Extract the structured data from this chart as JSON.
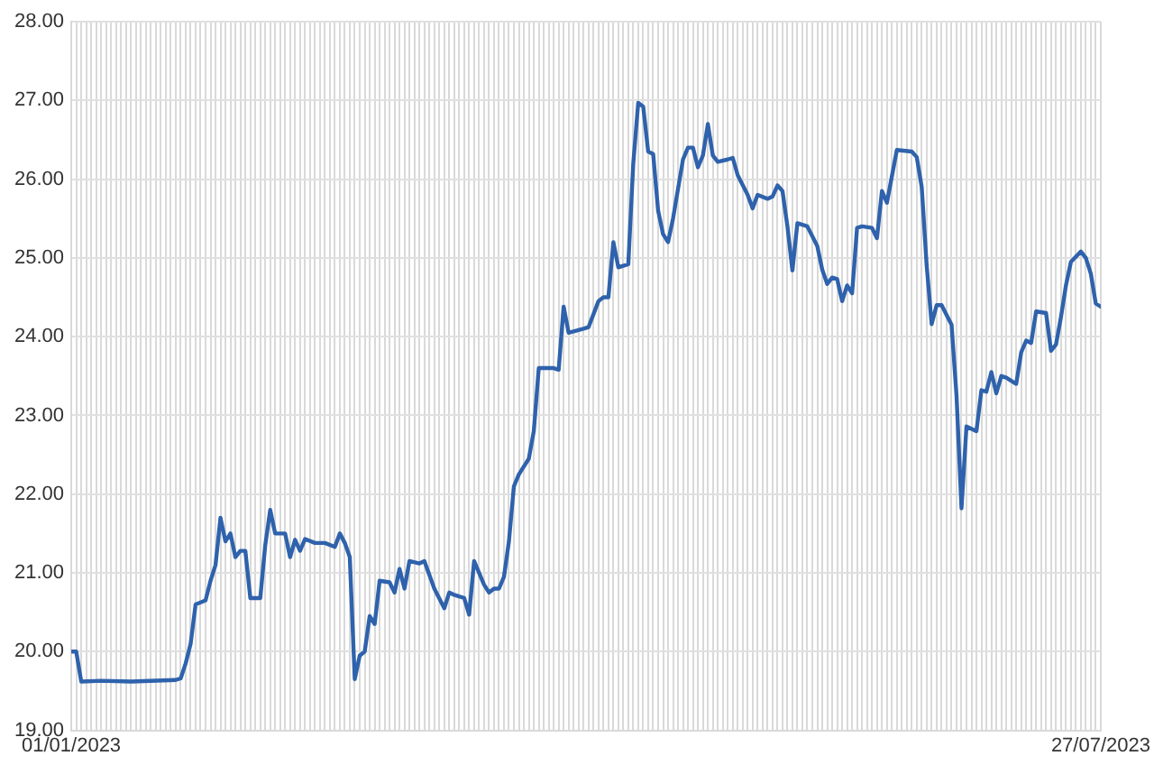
{
  "chart_data": {
    "type": "line",
    "xlim": [
      "2023-01-01",
      "2023-07-27"
    ],
    "ylim": [
      19,
      28
    ],
    "yticks": [
      {
        "value": 19,
        "label": "19.00"
      },
      {
        "value": 20,
        "label": "20.00"
      },
      {
        "value": 21,
        "label": "21.00"
      },
      {
        "value": 22,
        "label": "22.00"
      },
      {
        "value": 23,
        "label": "23.00"
      },
      {
        "value": 24,
        "label": "24.00"
      },
      {
        "value": 25,
        "label": "25.00"
      },
      {
        "value": 26,
        "label": "26.00"
      },
      {
        "value": 27,
        "label": "27.00"
      },
      {
        "value": 28,
        "label": "28.00"
      }
    ],
    "xticks": [
      {
        "value": "2023-01-01",
        "label": "01/01/2023"
      },
      {
        "value": "2023-01-02",
        "label": null
      },
      {
        "value": "2023-01-03",
        "label": null
      },
      {
        "value": "2023-01-04",
        "label": null
      },
      {
        "value": "2023-01-05",
        "label": null
      },
      {
        "value": "2023-01-06",
        "label": null
      },
      {
        "value": "2023-01-07",
        "label": null
      },
      {
        "value": "2023-01-08",
        "label": null
      },
      {
        "value": "2023-01-09",
        "label": null
      },
      {
        "value": "2023-01-10",
        "label": null
      },
      {
        "value": "2023-01-11",
        "label": null
      },
      {
        "value": "2023-01-12",
        "label": null
      },
      {
        "value": "2023-01-13",
        "label": null
      },
      {
        "value": "2023-01-14",
        "label": null
      },
      {
        "value": "2023-01-15",
        "label": null
      },
      {
        "value": "2023-01-16",
        "label": null
      },
      {
        "value": "2023-01-17",
        "label": null
      },
      {
        "value": "2023-01-18",
        "label": null
      },
      {
        "value": "2023-01-19",
        "label": null
      },
      {
        "value": "2023-01-20",
        "label": null
      },
      {
        "value": "2023-01-21",
        "label": null
      },
      {
        "value": "2023-01-22",
        "label": null
      },
      {
        "value": "2023-01-23",
        "label": null
      },
      {
        "value": "2023-01-24",
        "label": null
      },
      {
        "value": "2023-01-25",
        "label": null
      },
      {
        "value": "2023-01-26",
        "label": null
      },
      {
        "value": "2023-01-27",
        "label": null
      },
      {
        "value": "2023-01-28",
        "label": null
      },
      {
        "value": "2023-01-29",
        "label": null
      },
      {
        "value": "2023-01-30",
        "label": null
      },
      {
        "value": "2023-01-31",
        "label": null
      },
      {
        "value": "2023-02-01",
        "label": null
      },
      {
        "value": "2023-02-02",
        "label": null
      },
      {
        "value": "2023-02-03",
        "label": null
      },
      {
        "value": "2023-02-04",
        "label": null
      },
      {
        "value": "2023-02-05",
        "label": null
      },
      {
        "value": "2023-02-06",
        "label": null
      },
      {
        "value": "2023-02-07",
        "label": null
      },
      {
        "value": "2023-02-08",
        "label": null
      },
      {
        "value": "2023-02-09",
        "label": null
      },
      {
        "value": "2023-02-10",
        "label": null
      },
      {
        "value": "2023-02-11",
        "label": null
      },
      {
        "value": "2023-02-12",
        "label": null
      },
      {
        "value": "2023-02-13",
        "label": null
      },
      {
        "value": "2023-02-14",
        "label": null
      },
      {
        "value": "2023-02-15",
        "label": null
      },
      {
        "value": "2023-02-16",
        "label": null
      },
      {
        "value": "2023-02-17",
        "label": null
      },
      {
        "value": "2023-02-18",
        "label": null
      },
      {
        "value": "2023-02-19",
        "label": null
      },
      {
        "value": "2023-02-20",
        "label": null
      },
      {
        "value": "2023-02-21",
        "label": null
      },
      {
        "value": "2023-02-22",
        "label": null
      },
      {
        "value": "2023-02-23",
        "label": null
      },
      {
        "value": "2023-02-24",
        "label": null
      },
      {
        "value": "2023-02-25",
        "label": null
      },
      {
        "value": "2023-02-26",
        "label": null
      },
      {
        "value": "2023-02-27",
        "label": null
      },
      {
        "value": "2023-02-28",
        "label": null
      },
      {
        "value": "2023-03-01",
        "label": null
      },
      {
        "value": "2023-03-02",
        "label": null
      },
      {
        "value": "2023-03-03",
        "label": null
      },
      {
        "value": "2023-03-04",
        "label": null
      },
      {
        "value": "2023-03-05",
        "label": null
      },
      {
        "value": "2023-03-06",
        "label": null
      },
      {
        "value": "2023-03-07",
        "label": null
      },
      {
        "value": "2023-03-08",
        "label": null
      },
      {
        "value": "2023-03-09",
        "label": null
      },
      {
        "value": "2023-03-10",
        "label": null
      },
      {
        "value": "2023-03-11",
        "label": null
      },
      {
        "value": "2023-03-12",
        "label": null
      },
      {
        "value": "2023-03-13",
        "label": null
      },
      {
        "value": "2023-03-14",
        "label": null
      },
      {
        "value": "2023-03-15",
        "label": null
      },
      {
        "value": "2023-03-16",
        "label": null
      },
      {
        "value": "2023-03-17",
        "label": null
      },
      {
        "value": "2023-03-18",
        "label": null
      },
      {
        "value": "2023-03-19",
        "label": null
      },
      {
        "value": "2023-03-20",
        "label": null
      },
      {
        "value": "2023-03-21",
        "label": null
      },
      {
        "value": "2023-03-22",
        "label": null
      },
      {
        "value": "2023-03-23",
        "label": null
      },
      {
        "value": "2023-03-24",
        "label": null
      },
      {
        "value": "2023-03-25",
        "label": null
      },
      {
        "value": "2023-03-26",
        "label": null
      },
      {
        "value": "2023-03-27",
        "label": null
      },
      {
        "value": "2023-03-28",
        "label": null
      },
      {
        "value": "2023-03-29",
        "label": null
      },
      {
        "value": "2023-03-30",
        "label": null
      },
      {
        "value": "2023-03-31",
        "label": null
      },
      {
        "value": "2023-04-01",
        "label": null
      },
      {
        "value": "2023-04-02",
        "label": null
      },
      {
        "value": "2023-04-03",
        "label": null
      },
      {
        "value": "2023-04-04",
        "label": null
      },
      {
        "value": "2023-04-05",
        "label": null
      },
      {
        "value": "2023-04-06",
        "label": null
      },
      {
        "value": "2023-04-07",
        "label": null
      },
      {
        "value": "2023-04-08",
        "label": null
      },
      {
        "value": "2023-04-09",
        "label": null
      },
      {
        "value": "2023-04-10",
        "label": null
      },
      {
        "value": "2023-04-11",
        "label": null
      },
      {
        "value": "2023-04-12",
        "label": null
      },
      {
        "value": "2023-04-13",
        "label": null
      },
      {
        "value": "2023-04-14",
        "label": null
      },
      {
        "value": "2023-04-15",
        "label": null
      },
      {
        "value": "2023-04-16",
        "label": null
      },
      {
        "value": "2023-04-17",
        "label": null
      },
      {
        "value": "2023-04-18",
        "label": null
      },
      {
        "value": "2023-04-19",
        "label": null
      },
      {
        "value": "2023-04-20",
        "label": null
      },
      {
        "value": "2023-04-21",
        "label": null
      },
      {
        "value": "2023-04-22",
        "label": null
      },
      {
        "value": "2023-04-23",
        "label": null
      },
      {
        "value": "2023-04-24",
        "label": null
      },
      {
        "value": "2023-04-25",
        "label": null
      },
      {
        "value": "2023-04-26",
        "label": null
      },
      {
        "value": "2023-04-27",
        "label": null
      },
      {
        "value": "2023-04-28",
        "label": null
      },
      {
        "value": "2023-04-29",
        "label": null
      },
      {
        "value": "2023-04-30",
        "label": null
      },
      {
        "value": "2023-05-01",
        "label": null
      },
      {
        "value": "2023-05-02",
        "label": null
      },
      {
        "value": "2023-05-03",
        "label": null
      },
      {
        "value": "2023-05-04",
        "label": null
      },
      {
        "value": "2023-05-05",
        "label": null
      },
      {
        "value": "2023-05-06",
        "label": null
      },
      {
        "value": "2023-05-07",
        "label": null
      },
      {
        "value": "2023-05-08",
        "label": null
      },
      {
        "value": "2023-05-09",
        "label": null
      },
      {
        "value": "2023-05-10",
        "label": null
      },
      {
        "value": "2023-05-11",
        "label": null
      },
      {
        "value": "2023-05-12",
        "label": null
      },
      {
        "value": "2023-05-13",
        "label": null
      },
      {
        "value": "2023-05-14",
        "label": null
      },
      {
        "value": "2023-05-15",
        "label": null
      },
      {
        "value": "2023-05-16",
        "label": null
      },
      {
        "value": "2023-05-17",
        "label": null
      },
      {
        "value": "2023-05-18",
        "label": null
      },
      {
        "value": "2023-05-19",
        "label": null
      },
      {
        "value": "2023-05-20",
        "label": null
      },
      {
        "value": "2023-05-21",
        "label": null
      },
      {
        "value": "2023-05-22",
        "label": null
      },
      {
        "value": "2023-05-23",
        "label": null
      },
      {
        "value": "2023-05-24",
        "label": null
      },
      {
        "value": "2023-05-25",
        "label": null
      },
      {
        "value": "2023-05-26",
        "label": null
      },
      {
        "value": "2023-05-27",
        "label": null
      },
      {
        "value": "2023-05-28",
        "label": null
      },
      {
        "value": "2023-05-29",
        "label": null
      },
      {
        "value": "2023-05-30",
        "label": null
      },
      {
        "value": "2023-05-31",
        "label": null
      },
      {
        "value": "2023-06-01",
        "label": null
      },
      {
        "value": "2023-06-02",
        "label": null
      },
      {
        "value": "2023-06-03",
        "label": null
      },
      {
        "value": "2023-06-04",
        "label": null
      },
      {
        "value": "2023-06-05",
        "label": null
      },
      {
        "value": "2023-06-06",
        "label": null
      },
      {
        "value": "2023-06-07",
        "label": null
      },
      {
        "value": "2023-06-08",
        "label": null
      },
      {
        "value": "2023-06-09",
        "label": null
      },
      {
        "value": "2023-06-10",
        "label": null
      },
      {
        "value": "2023-06-11",
        "label": null
      },
      {
        "value": "2023-06-12",
        "label": null
      },
      {
        "value": "2023-06-13",
        "label": null
      },
      {
        "value": "2023-06-14",
        "label": null
      },
      {
        "value": "2023-06-15",
        "label": null
      },
      {
        "value": "2023-06-16",
        "label": null
      },
      {
        "value": "2023-06-17",
        "label": null
      },
      {
        "value": "2023-06-18",
        "label": null
      },
      {
        "value": "2023-06-19",
        "label": null
      },
      {
        "value": "2023-06-20",
        "label": null
      },
      {
        "value": "2023-06-21",
        "label": null
      },
      {
        "value": "2023-06-22",
        "label": null
      },
      {
        "value": "2023-06-23",
        "label": null
      },
      {
        "value": "2023-06-24",
        "label": null
      },
      {
        "value": "2023-06-25",
        "label": null
      },
      {
        "value": "2023-06-26",
        "label": null
      },
      {
        "value": "2023-06-27",
        "label": null
      },
      {
        "value": "2023-06-28",
        "label": null
      },
      {
        "value": "2023-06-29",
        "label": null
      },
      {
        "value": "2023-06-30",
        "label": null
      },
      {
        "value": "2023-07-01",
        "label": null
      },
      {
        "value": "2023-07-02",
        "label": null
      },
      {
        "value": "2023-07-03",
        "label": null
      },
      {
        "value": "2023-07-04",
        "label": null
      },
      {
        "value": "2023-07-05",
        "label": null
      },
      {
        "value": "2023-07-06",
        "label": null
      },
      {
        "value": "2023-07-07",
        "label": null
      },
      {
        "value": "2023-07-08",
        "label": null
      },
      {
        "value": "2023-07-09",
        "label": null
      },
      {
        "value": "2023-07-10",
        "label": null
      },
      {
        "value": "2023-07-11",
        "label": null
      },
      {
        "value": "2023-07-12",
        "label": null
      },
      {
        "value": "2023-07-13",
        "label": null
      },
      {
        "value": "2023-07-14",
        "label": null
      },
      {
        "value": "2023-07-15",
        "label": null
      },
      {
        "value": "2023-07-16",
        "label": null
      },
      {
        "value": "2023-07-17",
        "label": null
      },
      {
        "value": "2023-07-18",
        "label": null
      },
      {
        "value": "2023-07-19",
        "label": null
      },
      {
        "value": "2023-07-20",
        "label": null
      },
      {
        "value": "2023-07-21",
        "label": null
      },
      {
        "value": "2023-07-22",
        "label": null
      },
      {
        "value": "2023-07-23",
        "label": null
      },
      {
        "value": "2023-07-24",
        "label": null
      },
      {
        "value": "2023-07-25",
        "label": null
      },
      {
        "value": "2023-07-26",
        "label": null
      },
      {
        "value": "2023-07-27",
        "label": "27/07/2023"
      }
    ],
    "grid": true,
    "legend": false,
    "marker": "none",
    "line_style": "solid",
    "series": [
      {
        "color": "#2f62ac",
        "x": [
          "2023-01-01",
          "2023-01-02",
          "2023-01-03",
          "2023-01-07",
          "2023-01-13",
          "2023-01-22",
          "2023-01-23",
          "2023-01-24",
          "2023-01-25",
          "2023-01-26",
          "2023-01-28",
          "2023-01-29",
          "2023-01-30",
          "2023-01-31",
          "2023-02-01",
          "2023-02-02",
          "2023-02-03",
          "2023-02-04",
          "2023-02-05",
          "2023-02-06",
          "2023-02-08",
          "2023-02-09",
          "2023-02-10",
          "2023-02-11",
          "2023-02-13",
          "2023-02-14",
          "2023-02-15",
          "2023-02-16",
          "2023-02-17",
          "2023-02-19",
          "2023-02-21",
          "2023-02-23",
          "2023-02-24",
          "2023-02-25",
          "2023-02-26",
          "2023-02-27",
          "2023-02-28",
          "2023-03-01",
          "2023-03-02",
          "2023-03-03",
          "2023-03-04",
          "2023-03-06",
          "2023-03-07",
          "2023-03-08",
          "2023-03-09",
          "2023-03-10",
          "2023-03-12",
          "2023-03-13",
          "2023-03-15",
          "2023-03-17",
          "2023-03-18",
          "2023-03-19",
          "2023-03-21",
          "2023-03-22",
          "2023-03-23",
          "2023-03-25",
          "2023-03-26",
          "2023-03-27",
          "2023-03-28",
          "2023-03-29",
          "2023-03-30",
          "2023-03-31",
          "2023-04-01",
          "2023-04-02",
          "2023-04-03",
          "2023-04-04",
          "2023-04-05",
          "2023-04-08",
          "2023-04-09",
          "2023-04-10",
          "2023-04-11",
          "2023-04-14",
          "2023-04-15",
          "2023-04-17",
          "2023-04-18",
          "2023-04-19",
          "2023-04-20",
          "2023-04-21",
          "2023-04-23",
          "2023-04-24",
          "2023-04-25",
          "2023-04-26",
          "2023-04-27",
          "2023-04-28",
          "2023-04-29",
          "2023-04-30",
          "2023-05-01",
          "2023-05-02",
          "2023-05-04",
          "2023-05-05",
          "2023-05-06",
          "2023-05-07",
          "2023-05-08",
          "2023-05-09",
          "2023-05-10",
          "2023-05-11",
          "2023-05-13",
          "2023-05-14",
          "2023-05-15",
          "2023-05-17",
          "2023-05-18",
          "2023-05-19",
          "2023-05-21",
          "2023-05-22",
          "2023-05-23",
          "2023-05-24",
          "2023-05-25",
          "2023-05-26",
          "2023-05-27",
          "2023-05-29",
          "2023-05-31",
          "2023-06-01",
          "2023-06-02",
          "2023-06-03",
          "2023-06-04",
          "2023-06-05",
          "2023-06-06",
          "2023-06-07",
          "2023-06-08",
          "2023-06-09",
          "2023-06-11",
          "2023-06-12",
          "2023-06-13",
          "2023-06-14",
          "2023-06-16",
          "2023-06-19",
          "2023-06-20",
          "2023-06-21",
          "2023-06-22",
          "2023-06-23",
          "2023-06-24",
          "2023-06-25",
          "2023-06-27",
          "2023-06-28",
          "2023-06-29",
          "2023-06-30",
          "2023-07-02",
          "2023-07-03",
          "2023-07-04",
          "2023-07-05",
          "2023-07-06",
          "2023-07-07",
          "2023-07-08",
          "2023-07-10",
          "2023-07-11",
          "2023-07-12",
          "2023-07-13",
          "2023-07-14",
          "2023-07-16",
          "2023-07-17",
          "2023-07-18",
          "2023-07-19",
          "2023-07-20",
          "2023-07-21",
          "2023-07-23",
          "2023-07-24",
          "2023-07-25",
          "2023-07-26",
          "2023-07-27"
        ],
        "values": [
          20.0,
          20.0,
          19.62,
          19.63,
          19.62,
          19.64,
          19.66,
          19.85,
          20.1,
          20.6,
          20.65,
          20.9,
          21.1,
          21.7,
          21.4,
          21.5,
          21.2,
          21.28,
          21.28,
          20.68,
          20.68,
          21.35,
          21.8,
          21.5,
          21.5,
          21.2,
          21.42,
          21.28,
          21.43,
          21.38,
          21.38,
          21.33,
          21.5,
          21.38,
          21.2,
          19.65,
          19.95,
          20.0,
          20.45,
          20.35,
          20.9,
          20.88,
          20.75,
          21.05,
          20.8,
          21.15,
          21.12,
          21.15,
          20.8,
          20.55,
          20.75,
          20.72,
          20.68,
          20.47,
          21.15,
          20.85,
          20.75,
          20.8,
          20.8,
          20.95,
          21.4,
          22.1,
          22.25,
          22.35,
          22.45,
          22.8,
          23.6,
          23.6,
          23.58,
          24.38,
          24.05,
          24.1,
          24.12,
          24.45,
          24.5,
          24.5,
          25.2,
          24.88,
          24.92,
          26.2,
          26.97,
          26.92,
          26.35,
          26.32,
          25.6,
          25.3,
          25.2,
          25.5,
          26.25,
          26.4,
          26.4,
          26.15,
          26.3,
          26.7,
          26.3,
          26.22,
          26.25,
          26.27,
          26.05,
          25.8,
          25.63,
          25.8,
          25.75,
          25.78,
          25.92,
          25.85,
          25.4,
          24.84,
          25.44,
          25.4,
          25.15,
          24.85,
          24.67,
          24.75,
          24.73,
          24.45,
          24.65,
          24.55,
          25.38,
          25.4,
          25.38,
          25.25,
          25.85,
          25.7,
          26.37,
          26.35,
          26.28,
          25.9,
          24.9,
          24.16,
          24.4,
          24.4,
          24.15,
          23.25,
          21.82,
          22.86,
          22.8,
          23.32,
          23.3,
          23.55,
          23.28,
          23.5,
          23.48,
          23.4,
          23.8,
          23.95,
          23.92,
          24.32,
          24.3,
          23.82,
          23.9,
          24.25,
          24.65,
          24.95,
          25.08,
          25.0,
          24.8,
          24.42,
          24.38
        ]
      }
    ]
  }
}
